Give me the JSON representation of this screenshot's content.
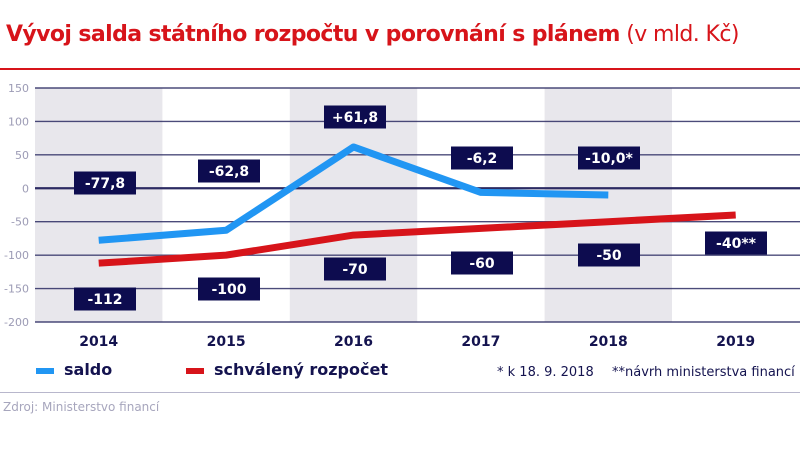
{
  "header": {
    "title": "Vývoj salda státního rozpočtu v porovnání s plánem",
    "unit": " (v mld. Kč)"
  },
  "legend": {
    "saldo": "saldo",
    "plan": "schválený rozpočet"
  },
  "notes": {
    "star": "* k 18. 9. 2018",
    "double_star": "**návrh ministerstva financí"
  },
  "footer": {
    "source": "Zdroj: Ministerstvo financí"
  },
  "colors": {
    "saldo": "#2196f3",
    "plan": "#d7141a",
    "label_bg": "#0d0c4f",
    "band": "#e8e7ec",
    "grid": "#2c2b63",
    "title": "#d7141a"
  },
  "chart_data": {
    "type": "line",
    "title": "Vývoj salda státního rozpočtu v porovnání s plánem (v mld. Kč)",
    "xlabel": "",
    "ylabel": "mld. Kč",
    "categories": [
      "2014",
      "2015",
      "2016",
      "2017",
      "2018",
      "2019"
    ],
    "yticks": [
      150,
      100,
      50,
      0,
      -50,
      -100,
      -150,
      -200
    ],
    "ylim": [
      -200,
      150
    ],
    "grid": true,
    "legend_position": "bottom",
    "series": [
      {
        "name": "saldo",
        "values": [
          -77.8,
          -62.8,
          61.8,
          -6.2,
          -10.0,
          null
        ],
        "labels": [
          "-77,8",
          "-62,8",
          "+61,8",
          "-6,2",
          "-10,0*",
          ""
        ]
      },
      {
        "name": "schválený rozpočet",
        "values": [
          -112,
          -100,
          -70,
          -60,
          -50,
          -40
        ],
        "labels": [
          "-112",
          "-100",
          "-70",
          "-60",
          "-50",
          "-40**"
        ]
      }
    ],
    "annotations": [
      "* k 18. 9. 2018",
      "**návrh ministerstva financí"
    ]
  }
}
